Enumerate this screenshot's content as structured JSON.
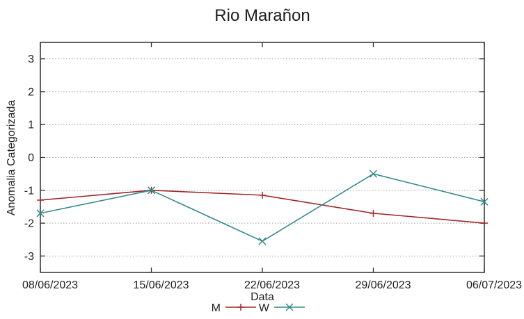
{
  "chart_data": {
    "type": "line",
    "title": "Rio Marañon",
    "xlabel": "Data",
    "ylabel": "Anomalia Categorizada",
    "categories": [
      "08/06/2023",
      "15/06/2023",
      "22/06/2023",
      "29/06/2023",
      "06/07/2023"
    ],
    "yticks": [
      -3,
      -2,
      -1,
      0,
      1,
      2,
      3
    ],
    "ylim": [
      -3.5,
      3.5
    ],
    "grid": "dotted-horizontal",
    "legend_position": "bottom-center",
    "series": [
      {
        "name": "M",
        "marker": "plus",
        "color": "#a02828",
        "values": [
          -1.3,
          -1.0,
          -1.15,
          -1.7,
          -2.0
        ]
      },
      {
        "name": "W",
        "marker": "cross",
        "color": "#368b8b",
        "values": [
          -1.7,
          -1.0,
          -2.55,
          -0.5,
          -1.35
        ]
      }
    ],
    "colors": {
      "axis": "#2e2e2e",
      "grid": "#a0a0a0",
      "text": "#1e1e1e",
      "background": "#ffffff"
    }
  }
}
